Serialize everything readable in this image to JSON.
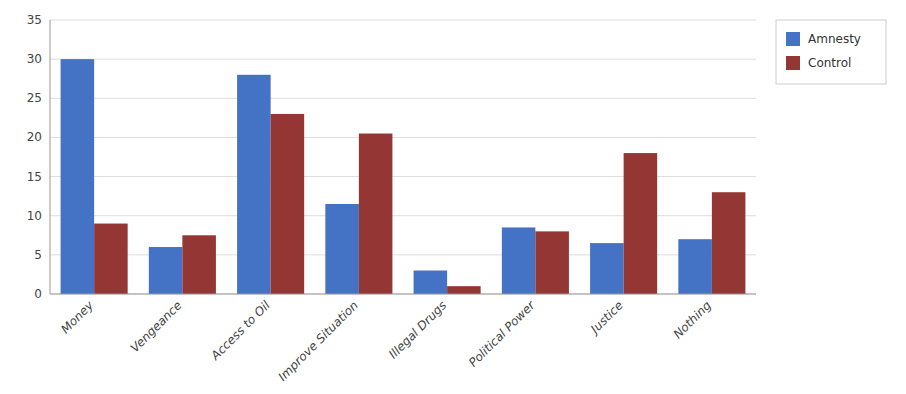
{
  "chart_data": {
    "type": "bar",
    "categories": [
      "Money",
      "Vengeance",
      "Access to Oil",
      "Improve Situation",
      "Illegal Drugs",
      "Political Power",
      "Justice",
      "Nothing"
    ],
    "series": [
      {
        "name": "Amnesty",
        "color": "#4472C4",
        "values": [
          30,
          6,
          28,
          11.5,
          3,
          8.5,
          6.5,
          7
        ]
      },
      {
        "name": "Control",
        "color": "#943634",
        "values": [
          9,
          7.5,
          23,
          20.5,
          1,
          8,
          18,
          13
        ]
      }
    ],
    "ylim": [
      0,
      35
    ],
    "yticks": [
      0,
      5,
      10,
      15,
      20,
      25,
      30,
      35
    ],
    "grid": true,
    "legend": "upper right"
  }
}
